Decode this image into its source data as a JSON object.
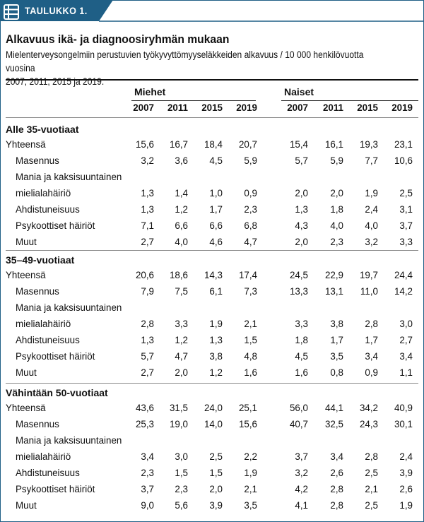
{
  "header": {
    "tag": "TAULUKKO 1.",
    "icon": "table-list-icon",
    "accent_color": "#1f5f86"
  },
  "title": "Alkavuus ikä- ja diagnoosiryhmän mukaan",
  "subtitle_line1": "Mielenterveysongelmiin perustuvien työkyvyttömyyseläkkeiden alkavuus / 10 000 henkilövuotta vuosina",
  "subtitle_line2": "2007, 2011, 2015 ja 2019.",
  "columns": {
    "men": "Miehet",
    "women": "Naiset",
    "years": [
      "2007",
      "2011",
      "2015",
      "2019"
    ]
  },
  "groups": [
    {
      "name": "Alle 35-vuotiaat",
      "rows": [
        {
          "label": "Yhteensä",
          "men": [
            "15,6",
            "16,7",
            "18,4",
            "20,7"
          ],
          "women": [
            "15,4",
            "16,1",
            "19,3",
            "23,1"
          ]
        },
        {
          "label": "Masennus",
          "men": [
            "3,2",
            "3,6",
            "4,5",
            "5,9"
          ],
          "women": [
            "5,7",
            "5,9",
            "7,7",
            "10,6"
          ]
        },
        {
          "label_line1": "Mania ja kaksisuuntainen",
          "label": "mielialahäiriö",
          "men": [
            "1,3",
            "1,4",
            "1,0",
            "0,9"
          ],
          "women": [
            "2,0",
            "2,0",
            "1,9",
            "2,5"
          ]
        },
        {
          "label": "Ahdistuneisuus",
          "men": [
            "1,3",
            "1,2",
            "1,7",
            "2,3"
          ],
          "women": [
            "1,3",
            "1,8",
            "2,4",
            "3,1"
          ]
        },
        {
          "label": "Psykoottiset häiriöt",
          "men": [
            "7,1",
            "6,6",
            "6,6",
            "6,8"
          ],
          "women": [
            "4,3",
            "4,0",
            "4,0",
            "3,7"
          ]
        },
        {
          "label": "Muut",
          "men": [
            "2,7",
            "4,0",
            "4,6",
            "4,7"
          ],
          "women": [
            "2,0",
            "2,3",
            "3,2",
            "3,3"
          ]
        }
      ]
    },
    {
      "name": "35–49-vuotiaat",
      "rows": [
        {
          "label": "Yhteensä",
          "men": [
            "20,6",
            "18,6",
            "14,3",
            "17,4"
          ],
          "women": [
            "24,5",
            "22,9",
            "19,7",
            "24,4"
          ]
        },
        {
          "label": "Masennus",
          "men": [
            "7,9",
            "7,5",
            "6,1",
            "7,3"
          ],
          "women": [
            "13,3",
            "13,1",
            "11,0",
            "14,2"
          ]
        },
        {
          "label_line1": "Mania ja kaksisuuntainen",
          "label": "mielialahäiriö",
          "men": [
            "2,8",
            "3,3",
            "1,9",
            "2,1"
          ],
          "women": [
            "3,3",
            "3,8",
            "2,8",
            "3,0"
          ]
        },
        {
          "label": "Ahdistuneisuus",
          "men": [
            "1,3",
            "1,2",
            "1,3",
            "1,5"
          ],
          "women": [
            "1,8",
            "1,7",
            "1,7",
            "2,7"
          ]
        },
        {
          "label": "Psykoottiset häiriöt",
          "men": [
            "5,7",
            "4,7",
            "3,8",
            "4,8"
          ],
          "women": [
            "4,5",
            "3,5",
            "3,4",
            "3,4"
          ]
        },
        {
          "label": "Muut",
          "men": [
            "2,7",
            "2,0",
            "1,2",
            "1,6"
          ],
          "women": [
            "1,6",
            "0,8",
            "0,9",
            "1,1"
          ]
        }
      ]
    },
    {
      "name": "Vähintään 50-vuotiaat",
      "rows": [
        {
          "label": "Yhteensä",
          "men": [
            "43,6",
            "31,5",
            "24,0",
            "25,1"
          ],
          "women": [
            "56,0",
            "44,1",
            "34,2",
            "40,9"
          ]
        },
        {
          "label": "Masennus",
          "men": [
            "25,3",
            "19,0",
            "14,0",
            "15,6"
          ],
          "women": [
            "40,7",
            "32,5",
            "24,3",
            "30,1"
          ]
        },
        {
          "label_line1": "Mania ja kaksisuuntainen",
          "label": "mielialahäiriö",
          "men": [
            "3,4",
            "3,0",
            "2,5",
            "2,2"
          ],
          "women": [
            "3,7",
            "3,4",
            "2,8",
            "2,4"
          ]
        },
        {
          "label": "Ahdistuneisuus",
          "men": [
            "2,3",
            "1,5",
            "1,5",
            "1,9"
          ],
          "women": [
            "3,2",
            "2,6",
            "2,5",
            "3,9"
          ]
        },
        {
          "label": "Psykoottiset häiriöt",
          "men": [
            "3,7",
            "2,3",
            "2,0",
            "2,1"
          ],
          "women": [
            "4,2",
            "2,8",
            "2,1",
            "2,6"
          ]
        },
        {
          "label": "Muut",
          "men": [
            "9,0",
            "5,6",
            "3,9",
            "3,5"
          ],
          "women": [
            "4,1",
            "2,8",
            "2,5",
            "1,9"
          ]
        }
      ]
    }
  ]
}
